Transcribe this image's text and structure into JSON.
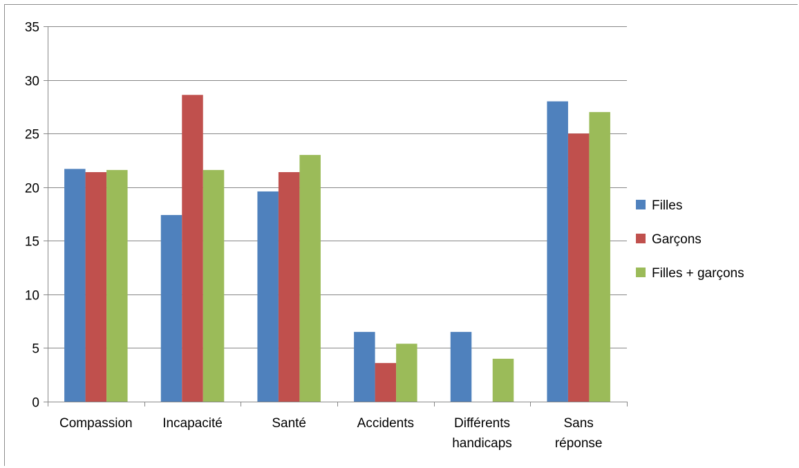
{
  "colors": {
    "filles": "#4f81bd",
    "garcons": "#c0504d",
    "total": "#9bbb59",
    "grid": "#868686"
  },
  "chart_data": {
    "type": "bar",
    "title": "",
    "xlabel": "",
    "ylabel": "",
    "ylim": [
      0,
      35
    ],
    "y_ticks": [
      0,
      5,
      10,
      15,
      20,
      25,
      30,
      35
    ],
    "grid": true,
    "legend_position": "right",
    "categories": [
      [
        "Compassion"
      ],
      [
        "Incapacité"
      ],
      [
        "Santé"
      ],
      [
        "Accidents"
      ],
      [
        "Différents",
        "handicaps"
      ],
      [
        "Sans",
        "réponse"
      ]
    ],
    "series": [
      {
        "name": "Filles",
        "color": "#4f81bd",
        "values": [
          21.7,
          17.4,
          19.6,
          6.5,
          6.5,
          28
        ]
      },
      {
        "name": "Garçons",
        "color": "#c0504d",
        "values": [
          21.4,
          28.6,
          21.4,
          3.6,
          0,
          25
        ]
      },
      {
        "name": "Filles + garçons",
        "color": "#9bbb59",
        "values": [
          21.6,
          21.6,
          23,
          5.4,
          4,
          27
        ]
      }
    ]
  }
}
